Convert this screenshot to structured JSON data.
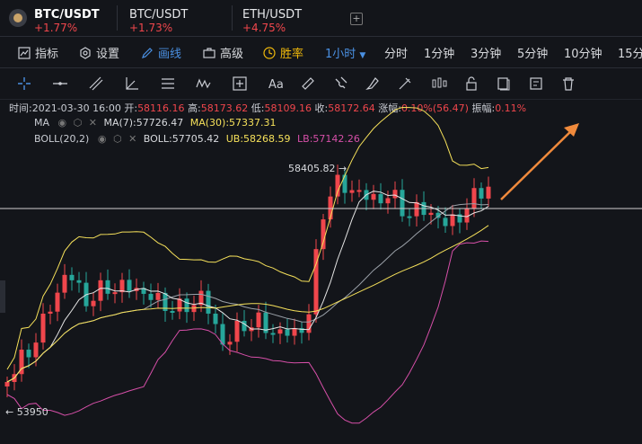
{
  "tabs": [
    {
      "name": "BTC/USDT",
      "change": "+1.77%",
      "active": true
    },
    {
      "name": "BTC/USDT",
      "change": "+1.73%",
      "active": false
    },
    {
      "name": "ETH/USDT",
      "change": "+4.75%",
      "active": false
    }
  ],
  "add_tab": "+",
  "toolbar": {
    "indicators": "指标",
    "settings": "设置",
    "draw": "画线",
    "advanced": "高级",
    "winrate": "胜率",
    "interval_selected": "1小时",
    "intervals": [
      "分时",
      "1分钟",
      "3分钟",
      "5分钟",
      "10分钟",
      "15分"
    ]
  },
  "drawing_tools": [
    "crosshair-icon",
    "horizontal-line-icon",
    "trend-line-icon",
    "angle-icon",
    "parallel-lines-icon",
    "wave-icon",
    "measure-icon",
    "text-icon",
    "ruler-icon",
    "magnet-icon",
    "brush-icon",
    "pattern-icon",
    "lock-icon",
    "copy-icon",
    "note-icon",
    "trash-icon"
  ],
  "ohlc": {
    "time_label": "时间:",
    "time": "2021-03-30 16:00",
    "open_label": "开:",
    "open": "58116.16",
    "high_label": "高:",
    "high": "58173.62",
    "low_label": "低:",
    "low": "58109.16",
    "close_label": "收:",
    "close": "58172.64",
    "change_label": "涨幅:",
    "change": "0.10%(56.47)",
    "amp_label": "振幅:",
    "amp": "0.11%"
  },
  "ma": {
    "name": "MA",
    "ma7": "MA(7):57726.47",
    "ma30": "MA(30):57337.31"
  },
  "boll": {
    "name": "BOLL(20,2)",
    "boll": "BOLL:57705.42",
    "ub": "UB:58268.59",
    "lb": "LB:57142.26"
  },
  "chart_data": {
    "type": "candlestick",
    "high_label": "58405.82 →",
    "low_label": "← 53950",
    "colors": {
      "up": "#f0464c",
      "down": "#26a69a",
      "ma7": "#e6e6e6",
      "ma30": "#f5e05a",
      "boll_ub": "#f5e05a",
      "boll_lb": "#d64fa8",
      "boll_mid": "#9aa0a8"
    }
  }
}
